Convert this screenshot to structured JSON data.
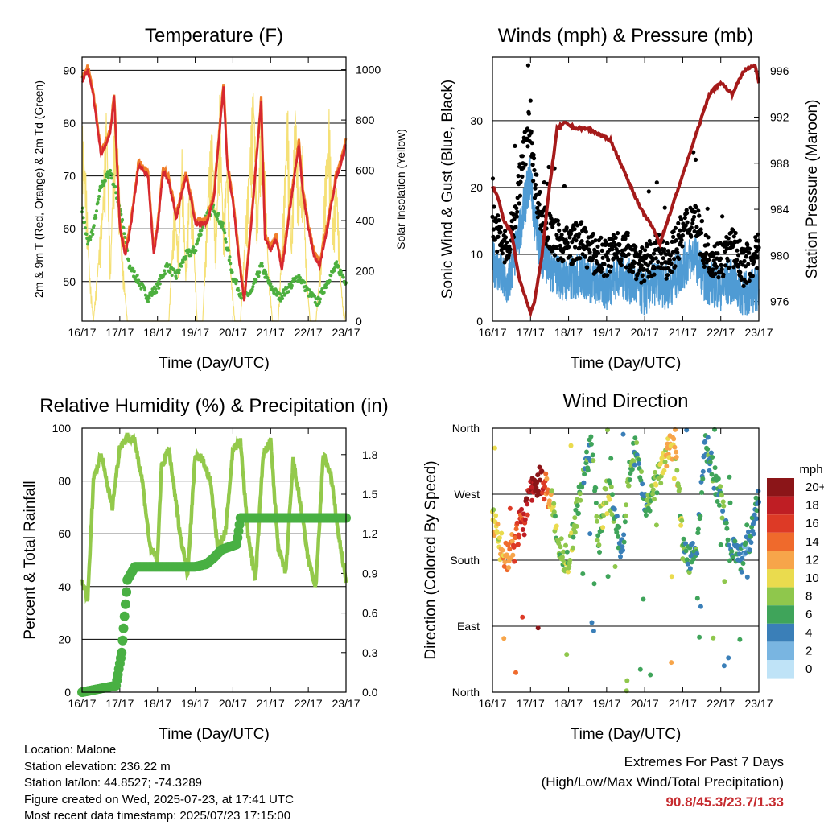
{
  "x_ticks": [
    "16/17",
    "17/17",
    "18/17",
    "19/17",
    "20/17",
    "21/17",
    "22/17",
    "23/17"
  ],
  "x_label": "Time (Day/UTC)",
  "colors": {
    "temp_2m": "#d7282f",
    "temp_9m": "#f07f2b",
    "dewpoint": "#4caf3e",
    "solar": "#f5e076",
    "wind": "#4f9bd4",
    "gust": "#000000",
    "pressure": "#a51a1a",
    "rh": "#93c94b",
    "precip": "#49b043"
  },
  "chart_data": [
    {
      "type": "line",
      "title": "Temperature (F)",
      "xlabel": "Time (Day/UTC)",
      "ylabel": "2m & 9m T (Red, Orange) & 2m Td (Green)",
      "y2label": "Solar Insolation (Yellow)",
      "ylim": [
        42.5,
        92.5
      ],
      "y2lim": [
        0,
        1050
      ],
      "yticks": [
        50,
        60,
        70,
        80,
        90
      ],
      "y2ticks": [
        0,
        200,
        400,
        600,
        800,
        1000
      ],
      "series": [
        {
          "key": "temp",
          "x": [
            0,
            0.15,
            0.3,
            0.5,
            0.75,
            0.85,
            1,
            1.15,
            1.3,
            1.5,
            1.75,
            1.9,
            2,
            2.15,
            2.3,
            2.5,
            2.75,
            2.85,
            3,
            3.15,
            3.3,
            3.5,
            3.75,
            3.85,
            4,
            4.15,
            4.3,
            4.5,
            4.75,
            4.85,
            5,
            5.15,
            5.3,
            5.5,
            5.75,
            5.85,
            6,
            6.15,
            6.3,
            6.5,
            6.75,
            6.85,
            7
          ],
          "values": [
            88,
            90,
            85,
            74,
            78,
            85,
            60,
            55,
            61,
            72,
            70,
            55,
            60,
            71,
            69,
            62,
            70,
            67,
            61,
            61,
            61,
            66,
            87,
            72,
            65,
            55,
            46,
            62,
            84,
            58,
            56,
            58,
            52,
            63,
            76,
            67,
            60,
            55,
            53,
            60,
            70,
            72,
            76
          ]
        },
        {
          "key": "dewpoint",
          "x": [
            0,
            0.15,
            0.3,
            0.5,
            0.75,
            1,
            1.25,
            1.5,
            1.75,
            2,
            2.25,
            2.5,
            2.75,
            3,
            3.25,
            3.5,
            3.75,
            4,
            4.25,
            4.5,
            4.75,
            5,
            5.25,
            5.5,
            5.75,
            6,
            6.25,
            6.5,
            6.75,
            7
          ],
          "values": [
            64,
            57,
            60,
            68,
            71,
            64,
            53,
            50,
            47,
            49,
            53,
            51,
            55,
            56,
            62,
            64,
            60,
            51,
            47,
            48,
            53,
            49,
            47,
            49,
            51,
            48,
            46,
            50,
            53,
            50
          ]
        },
        {
          "key": "solar",
          "x": [
            0,
            0.1,
            0.2,
            0.3,
            0.45,
            0.55,
            0.65,
            0.75,
            0.85,
            0.95,
            1.05,
            1.2,
            2.3,
            2.45,
            2.55,
            2.65,
            2.75,
            2.85,
            2.95,
            3.05,
            3.2,
            3.35,
            3.45,
            3.55,
            3.65,
            3.75,
            3.85,
            3.95,
            4.05,
            4.2,
            4.3,
            4.45,
            4.55,
            4.65,
            4.75,
            4.85,
            4.95,
            5.05,
            5.2,
            5.35,
            5.45,
            5.55,
            5.65,
            5.75,
            5.85,
            5.95,
            6.05,
            6.2,
            6.35,
            6.45,
            6.55,
            6.65,
            6.75,
            6.85,
            6.95,
            7
          ],
          "values": [
            800,
            600,
            200,
            0,
            300,
            500,
            900,
            200,
            800,
            700,
            300,
            0,
            0,
            500,
            300,
            700,
            200,
            600,
            400,
            0,
            0,
            600,
            800,
            300,
            900,
            400,
            700,
            200,
            0,
            0,
            300,
            700,
            1000,
            400,
            900,
            600,
            200,
            0,
            0,
            500,
            900,
            300,
            950,
            500,
            700,
            200,
            0,
            0,
            300,
            600,
            850,
            400,
            600,
            200,
            0,
            50
          ]
        }
      ]
    },
    {
      "type": "scatter",
      "title": "Winds (mph) & Pressure (mb)",
      "xlabel": "Time (Day/UTC)",
      "ylabel": "Sonic Wind & Gust (Blue, Black)",
      "y2label": "Station Pressure (Maroon)",
      "ylim": [
        0,
        39.5
      ],
      "y2lim": [
        974.3,
        997.2
      ],
      "yticks": [
        0,
        10,
        20,
        30
      ],
      "y2ticks": [
        976,
        980,
        984,
        988,
        992,
        996
      ],
      "series": [
        {
          "key": "wind",
          "x": [
            0,
            0.2,
            0.4,
            0.6,
            0.8,
            1,
            1.1,
            1.3,
            1.5,
            1.7,
            2,
            2.3,
            2.6,
            3,
            3.3,
            3.6,
            4,
            4.3,
            4.6,
            5,
            5.3,
            5.6,
            6,
            6.3,
            6.6,
            7
          ],
          "values": [
            9,
            7,
            5,
            10,
            16,
            22,
            15,
            10,
            8,
            7,
            6,
            7,
            6,
            5,
            7,
            6,
            4,
            6,
            5,
            8,
            10,
            6,
            5,
            6,
            4,
            5
          ]
        },
        {
          "key": "gust",
          "x": [
            0,
            0.2,
            0.4,
            0.6,
            0.8,
            1,
            1.1,
            1.3,
            1.5,
            1.7,
            2,
            2.3,
            2.6,
            3,
            3.3,
            3.6,
            4,
            4.3,
            4.6,
            5,
            5.3,
            5.6,
            6,
            6.3,
            6.6,
            7
          ],
          "values": [
            14,
            11,
            9,
            15,
            23,
            29,
            20,
            14,
            12,
            11,
            10,
            11,
            9,
            8,
            10,
            9,
            7,
            9,
            8,
            12,
            15,
            9,
            8,
            10,
            7,
            9
          ]
        },
        {
          "key": "pressure",
          "x": [
            0,
            0.15,
            0.3,
            0.5,
            0.7,
            0.9,
            1,
            1.1,
            1.3,
            1.5,
            1.7,
            1.9,
            2.2,
            2.5,
            2.8,
            3.1,
            3.5,
            3.9,
            4.2,
            4.4,
            4.6,
            4.9,
            5.2,
            5.4,
            5.7,
            6,
            6.3,
            6.6,
            6.9,
            7
          ],
          "values": [
            986,
            985,
            983,
            982,
            978,
            976,
            975,
            976,
            980,
            986,
            991,
            991.5,
            991,
            991,
            990.5,
            990,
            987,
            984,
            982.5,
            981,
            983,
            986,
            989,
            991,
            994,
            995,
            994,
            996,
            996.5,
            995
          ]
        }
      ]
    },
    {
      "type": "line",
      "title": "Relative Humidity (%) & Precipitation (in)",
      "xlabel": "Time (Day/UTC)",
      "ylabel": "Percent & Total Rainfall",
      "ylim": [
        0,
        100
      ],
      "y2lim": [
        0,
        2.0
      ],
      "yticks": [
        0,
        20,
        40,
        60,
        80,
        100
      ],
      "y2ticks": [
        "0.0",
        "0.3",
        "0.6",
        "0.9",
        "1.2",
        "1.5",
        "1.8"
      ],
      "series": [
        {
          "key": "rh",
          "x": [
            0,
            0.15,
            0.3,
            0.5,
            0.8,
            1,
            1.2,
            1.4,
            1.6,
            1.8,
            2,
            2.1,
            2.3,
            2.6,
            2.8,
            3,
            3.2,
            3.4,
            3.6,
            3.8,
            4,
            4.2,
            4.4,
            4.6,
            4.8,
            5,
            5.2,
            5.4,
            5.6,
            5.8,
            6,
            6.2,
            6.4,
            6.6,
            6.8,
            7
          ],
          "values": [
            43,
            35,
            80,
            90,
            70,
            93,
            97,
            95,
            80,
            55,
            50,
            85,
            92,
            60,
            45,
            90,
            88,
            80,
            55,
            60,
            92,
            95,
            60,
            42,
            90,
            95,
            55,
            45,
            88,
            70,
            50,
            40,
            90,
            82,
            60,
            42
          ]
        },
        {
          "key": "precip",
          "x": [
            0,
            0.9,
            1.05,
            1.2,
            1.4,
            1.6,
            3.0,
            3.3,
            3.5,
            3.7,
            3.9,
            4.1,
            4.2,
            4.35,
            7
          ],
          "values": [
            0,
            0.05,
            0.3,
            0.85,
            0.95,
            0.95,
            0.95,
            0.97,
            1.02,
            1.08,
            1.1,
            1.12,
            1.32,
            1.32,
            1.32
          ]
        }
      ]
    },
    {
      "type": "scatter",
      "title": "Wind Direction",
      "xlabel": "Time (Day/UTC)",
      "ylabel": "Direction (Colored By Speed)",
      "yticks": [
        "North",
        "West",
        "South",
        "East",
        "North"
      ],
      "ylim": [
        0,
        360
      ],
      "legend_title": "mph",
      "legend_labels": [
        "20+",
        "18",
        "16",
        "14",
        "12",
        "10",
        "8",
        "6",
        "4",
        "2",
        "0"
      ],
      "legend_colors": [
        "#8b1518",
        "#bf1e24",
        "#dd3a26",
        "#ef6a2c",
        "#f7a54a",
        "#eadb4e",
        "#8fc74c",
        "#3fa45a",
        "#3a7fb8",
        "#79b5e1",
        "#bfe3f7"
      ],
      "series": [
        {
          "key": "direction",
          "x": [
            0,
            0.2,
            0.4,
            0.6,
            0.8,
            1,
            1.2,
            1.4,
            1.6,
            1.8,
            2,
            2.2,
            2.4,
            2.6,
            2.8,
            3,
            3.2,
            3.4,
            3.6,
            3.8,
            4,
            4.2,
            4.4,
            4.6,
            4.8,
            5,
            5.2,
            5.4,
            5.6,
            5.8,
            6,
            6.2,
            6.4,
            6.6,
            6.8,
            7
          ],
          "values": [
            240,
            200,
            180,
            210,
            240,
            270,
            290,
            280,
            250,
            190,
            180,
            240,
            300,
            340,
            200,
            280,
            250,
            190,
            300,
            340,
            250,
            270,
            300,
            330,
            340,
            200,
            180,
            210,
            340,
            300,
            260,
            200,
            190,
            180,
            220,
            270
          ],
          "speeds": [
            9,
            11,
            13,
            15,
            17,
            19,
            21,
            14,
            9,
            7,
            8,
            7,
            6,
            5,
            7,
            9,
            6,
            5,
            7,
            6,
            5,
            7,
            8,
            11,
            11,
            7,
            5,
            6,
            5,
            6,
            7,
            5,
            6,
            4,
            5,
            5
          ]
        }
      ]
    }
  ],
  "info": {
    "location": "Location: Malone",
    "elevation": "Station elevation: 236.22 m",
    "latlon": "Station lat/lon: 44.8527; -74.3289",
    "created": "Figure created on Wed, 2025-07-23, at 17:41 UTC",
    "recent": "Most recent data timestamp: 2025/07/23 17:15:00"
  },
  "extremes": {
    "line1": "Extremes For Past 7 Days",
    "line2": "(High/Low/Max Wind/Total Precipitation)",
    "values": "90.8/45.3/23.7/1.33"
  }
}
